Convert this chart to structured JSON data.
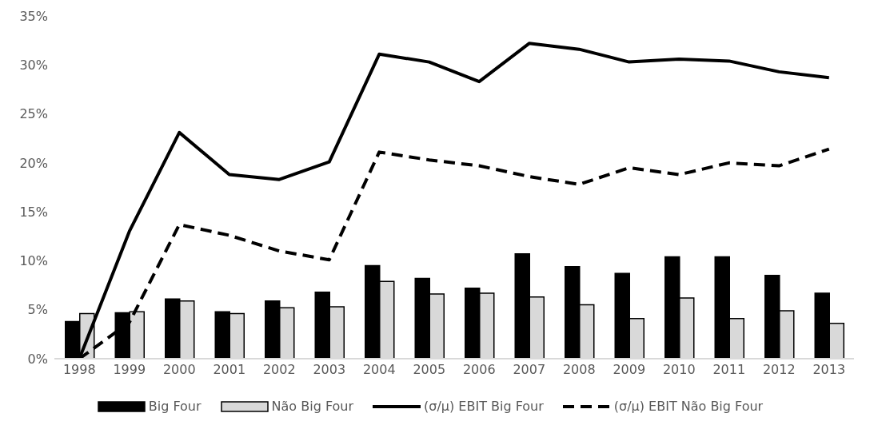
{
  "chart_data": {
    "type": "bar",
    "categories": [
      "1998",
      "1999",
      "2000",
      "2001",
      "2002",
      "2003",
      "2004",
      "2005",
      "2006",
      "2007",
      "2008",
      "2009",
      "2010",
      "2011",
      "2012",
      "2013"
    ],
    "series": [
      {
        "name": "Big Four",
        "color": "#000000",
        "values": [
          3.8,
          4.7,
          6.1,
          4.8,
          5.9,
          6.8,
          9.5,
          8.2,
          7.2,
          10.7,
          9.4,
          8.7,
          10.4,
          10.4,
          8.5,
          6.7
        ]
      },
      {
        "name": "Não Big Four",
        "color": "#d9d9d9",
        "values": [
          4.6,
          4.8,
          5.9,
          4.6,
          5.2,
          5.3,
          7.9,
          6.6,
          6.7,
          6.3,
          5.5,
          4.1,
          6.2,
          4.1,
          4.9,
          3.6
        ]
      },
      {
        "name": "(σ/μ) EBIT Big Four",
        "type": "line",
        "color": "#000000",
        "line_style": "solid",
        "values": [
          0,
          13,
          23.1,
          18.8,
          18.3,
          20.1,
          31.1,
          30.3,
          28.3,
          32.2,
          31.6,
          30.3,
          30.6,
          30.4,
          29.3,
          28.7
        ]
      },
      {
        "name": "(σ/μ) EBIT Não Big Four",
        "type": "line",
        "color": "#000000",
        "line_style": "dashed",
        "values": [
          0,
          3.7,
          13.7,
          12.6,
          11.0,
          10.1,
          21.1,
          20.3,
          19.7,
          18.6,
          17.8,
          19.5,
          18.8,
          20.0,
          19.7,
          21.4
        ]
      }
    ],
    "ylim": [
      0,
      35
    ],
    "yticks": [
      {
        "value": 0,
        "label": "0%"
      },
      {
        "value": 5,
        "label": "5%"
      },
      {
        "value": 10,
        "label": "10%"
      },
      {
        "value": 15,
        "label": "15%"
      },
      {
        "value": 20,
        "label": "20%"
      },
      {
        "value": 25,
        "label": "25%"
      },
      {
        "value": 30,
        "label": "30%"
      },
      {
        "value": 35,
        "label": "35%"
      }
    ],
    "grid": false,
    "legend": "bottom",
    "marker": "none"
  }
}
